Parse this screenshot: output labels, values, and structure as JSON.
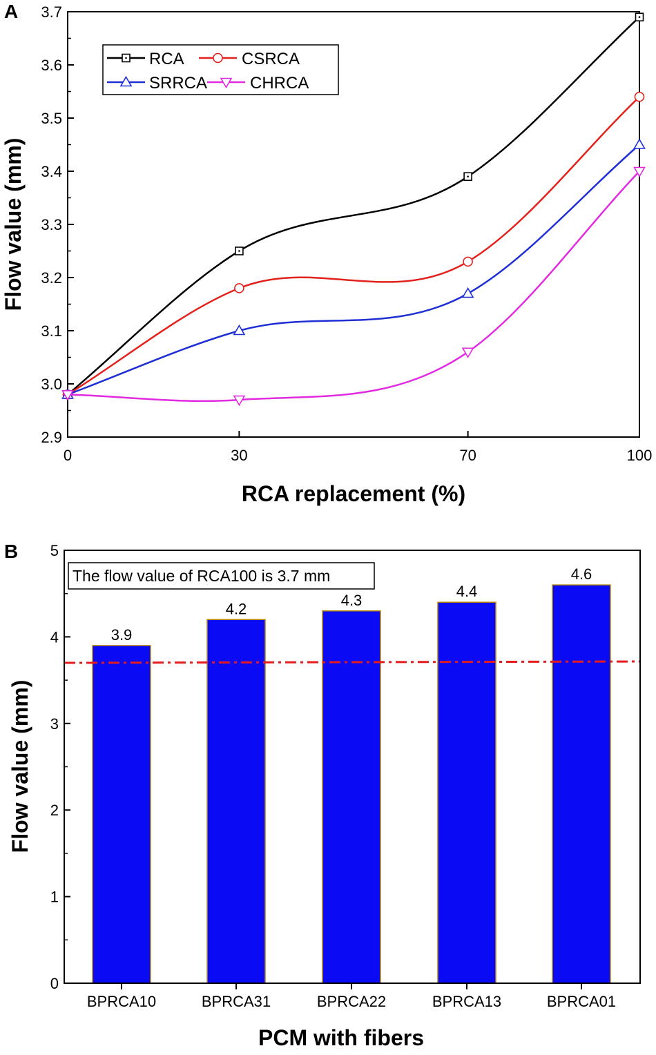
{
  "colors": {
    "RCA": "#000000",
    "CSRCA": "#e3211c",
    "SRRCA": "#1f2fd6",
    "CHRCA": "#e22ae0",
    "bar_fill": "#0a0af5",
    "bar_edge": "#b8860b",
    "ref_line": "#e41a1c"
  },
  "chart_data": [
    {
      "panel": "A",
      "type": "line",
      "xlabel": "RCA replacement (%)",
      "ylabel": "Flow value (mm)",
      "x": [
        0,
        30,
        70,
        100
      ],
      "x_tick_labels": [
        "0",
        "30",
        "70",
        "100"
      ],
      "ylim": [
        2.9,
        3.7
      ],
      "y_ticks": [
        "2.9",
        "3.0",
        "3.1",
        "3.2",
        "3.3",
        "3.4",
        "3.5",
        "3.6",
        "3.7"
      ],
      "legend_position": "top-left",
      "series": [
        {
          "name": "RCA",
          "marker": "square",
          "values": [
            2.98,
            3.25,
            3.39,
            3.69
          ]
        },
        {
          "name": "CSRCA",
          "marker": "circle",
          "values": [
            2.98,
            3.18,
            3.23,
            3.54
          ]
        },
        {
          "name": "SRRCA",
          "marker": "triangle-up",
          "values": [
            2.98,
            3.1,
            3.17,
            3.45
          ]
        },
        {
          "name": "CHRCA",
          "marker": "triangle-down",
          "values": [
            2.98,
            2.97,
            3.06,
            3.4
          ]
        }
      ]
    },
    {
      "panel": "B",
      "type": "bar",
      "xlabel": "PCM with fibers",
      "ylabel": "Flow value (mm)",
      "categories": [
        "BPRCA10",
        "BPRCA31",
        "BPRCA22",
        "BPRCA13",
        "BPRCA01"
      ],
      "values": [
        3.9,
        4.2,
        4.3,
        4.4,
        4.6
      ],
      "value_labels": [
        "3.9",
        "4.2",
        "4.3",
        "4.4",
        "4.6"
      ],
      "ylim": [
        0,
        5
      ],
      "y_ticks": [
        "0",
        "1",
        "2",
        "3",
        "4",
        "5"
      ],
      "reference_line": {
        "value": 3.7,
        "style": "dash-dot"
      },
      "annotation": "The flow value of RCA100 is 3.7 mm"
    }
  ]
}
